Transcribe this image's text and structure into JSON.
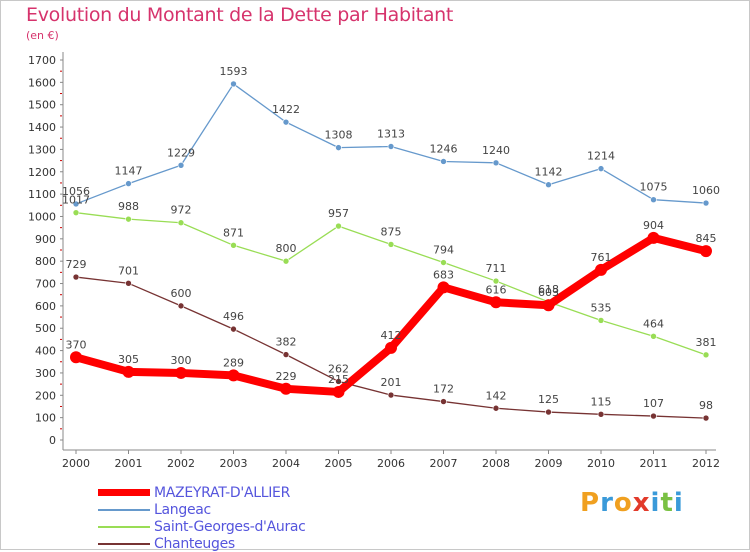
{
  "header": {
    "title": "Evolution du Montant de la Dette par Habitant",
    "unit": "(en €)"
  },
  "colors": {
    "title": "#d6336c",
    "axis": "#888888",
    "grid_tick": "#cc0000"
  },
  "chart_data": {
    "type": "line",
    "x": [
      "2000",
      "2001",
      "2002",
      "2003",
      "2004",
      "2005",
      "2006",
      "2007",
      "2008",
      "2009",
      "2010",
      "2011",
      "2012"
    ],
    "ylim": [
      0,
      1700
    ],
    "yticks": [
      "0",
      "100",
      "200",
      "300",
      "400",
      "500",
      "600",
      "700",
      "800",
      "900",
      "1000",
      "1100",
      "1200",
      "1300",
      "1400",
      "1500",
      "1600",
      "1700"
    ],
    "grid": false,
    "legend_position": "bottom-left",
    "series": [
      {
        "name": "MAZEYRAT-D'ALLIER",
        "color": "#ff0000",
        "label_color": "#5555dd",
        "values": [
          370,
          305,
          300,
          289,
          229,
          215,
          412,
          683,
          616,
          603,
          761,
          904,
          845
        ],
        "labels": [
          "370",
          "305",
          "300",
          "289",
          "229",
          "215",
          "412",
          "683",
          "616",
          "603",
          "761",
          "904",
          "845"
        ]
      },
      {
        "name": "Langeac",
        "color": "#6699cc",
        "label_color": "#5555dd",
        "values": [
          1056,
          1147,
          1229,
          1593,
          1422,
          1308,
          1313,
          1246,
          1240,
          1142,
          1214,
          1075,
          1060
        ],
        "labels": [
          "1056",
          "1147",
          "1229",
          "1593",
          "1422",
          "1308",
          "1313",
          "1246",
          "1240",
          "1142",
          "1214",
          "1075",
          "1060"
        ]
      },
      {
        "name": "Saint-Georges-d'Aurac",
        "color": "#99dd55",
        "label_color": "#5555dd",
        "values": [
          1017,
          988,
          972,
          871,
          800,
          957,
          875,
          794,
          711,
          618,
          535,
          464,
          381
        ],
        "labels": [
          "1017",
          "988",
          "972",
          "871",
          "800",
          "957",
          "875",
          "794",
          "711",
          "618",
          "535",
          "464",
          "381"
        ]
      },
      {
        "name": "Chanteuges",
        "color": "#773333",
        "label_color": "#5555dd",
        "values": [
          729,
          701,
          600,
          496,
          382,
          262,
          201,
          172,
          142,
          125,
          115,
          107,
          98
        ],
        "labels": [
          "729",
          "701",
          "600",
          "496",
          "382",
          "262",
          "201",
          "172",
          "142",
          "125",
          "115",
          "107",
          "98"
        ]
      }
    ]
  },
  "logo": {
    "text": "Proxiti",
    "letters": [
      "P",
      "r",
      "o",
      "x",
      "i",
      "t",
      "i"
    ],
    "letter_colors": [
      "#f0a020",
      "#3a9ad9",
      "#f0a020",
      "#e23a2a",
      "#3a9ad9",
      "#7ac143",
      "#3a9ad9"
    ]
  }
}
